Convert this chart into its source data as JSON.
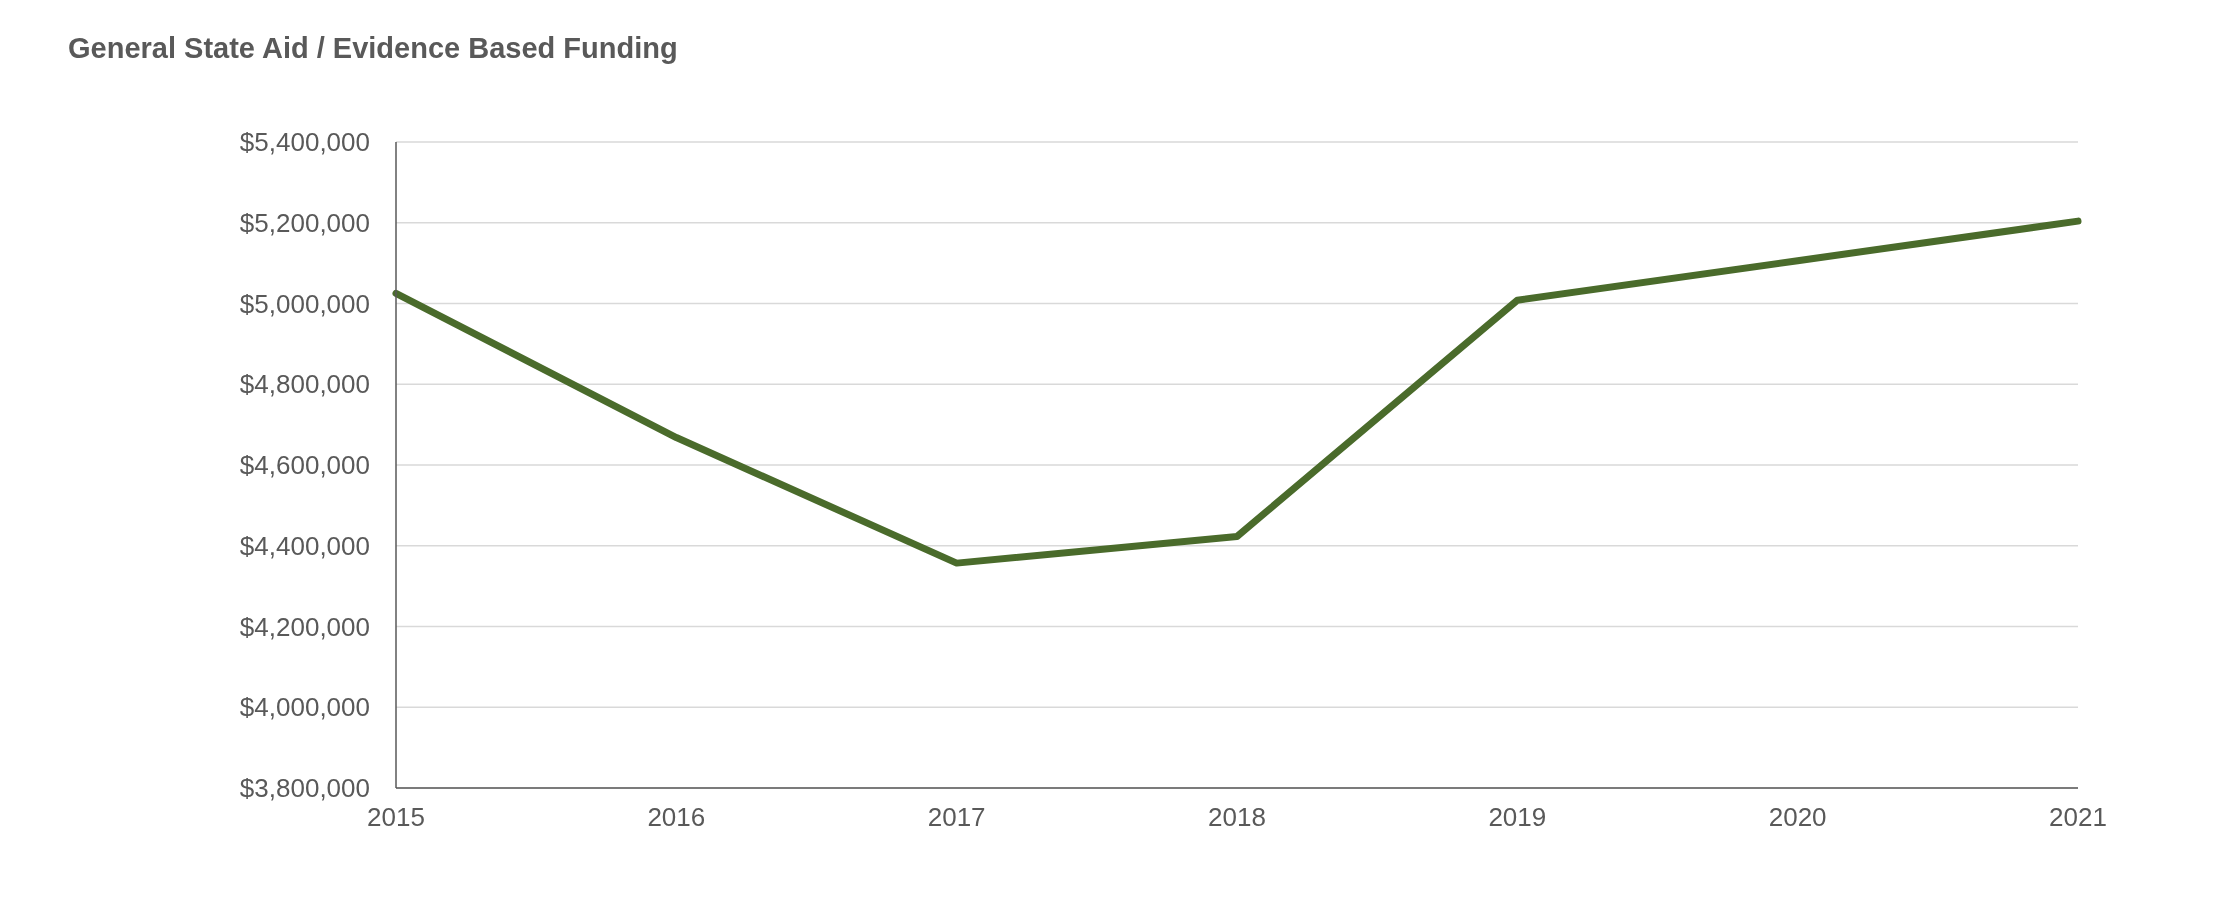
{
  "chart_data": {
    "type": "line",
    "title": "General State Aid / Evidence Based Funding",
    "categories": [
      "2015",
      "2016",
      "2017",
      "2018",
      "2019",
      "2020",
      "2021"
    ],
    "series": [
      {
        "color": "#4a6b2b",
        "values": [
          5025000,
          4668000,
          4357000,
          4423000,
          5008000,
          5106000,
          5204000
        ]
      }
    ],
    "ylim": [
      3800000,
      5400000
    ],
    "yticks": [
      {
        "value": 3800000,
        "label": "$3,800,000"
      },
      {
        "value": 4000000,
        "label": "$4,000,000"
      },
      {
        "value": 4200000,
        "label": "$4,200,000"
      },
      {
        "value": 4400000,
        "label": "$4,400,000"
      },
      {
        "value": 4600000,
        "label": "$4,600,000"
      },
      {
        "value": 4800000,
        "label": "$4,800,000"
      },
      {
        "value": 5000000,
        "label": "$5,000,000"
      },
      {
        "value": 5200000,
        "label": "$5,200,000"
      },
      {
        "value": 5400000,
        "label": "$5,400,000"
      }
    ],
    "grid": "y",
    "legend": false,
    "marker": "none",
    "line_style": "solid"
  }
}
